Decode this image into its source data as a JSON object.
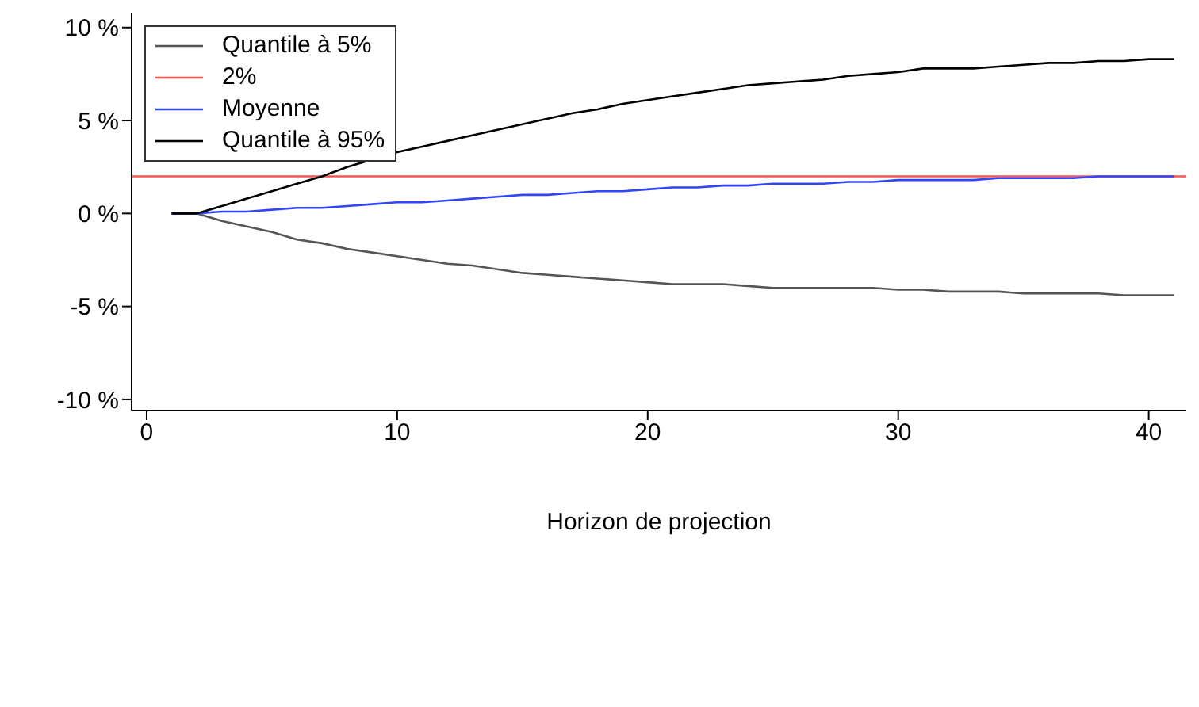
{
  "chart_data": {
    "type": "line",
    "xlabel": "Horizon de projection",
    "xlim": [
      -0.6,
      41.5
    ],
    "xticks": [
      0,
      10,
      20,
      30,
      40
    ],
    "ylim": [
      -10.6,
      10.8
    ],
    "yticks": [
      {
        "value": -10,
        "label": "-10 %"
      },
      {
        "value": -5,
        "label": "-5 %"
      },
      {
        "value": 0,
        "label": "0 %"
      },
      {
        "value": 5,
        "label": "5 %"
      },
      {
        "value": 10,
        "label": "10 %"
      }
    ],
    "x": [
      1,
      2,
      3,
      4,
      5,
      6,
      7,
      8,
      9,
      10,
      11,
      12,
      13,
      14,
      15,
      16,
      17,
      18,
      19,
      20,
      21,
      22,
      23,
      24,
      25,
      26,
      27,
      28,
      29,
      30,
      31,
      32,
      33,
      34,
      35,
      36,
      37,
      38,
      39,
      40,
      41
    ],
    "series": [
      {
        "name": "Quantile à 5%",
        "color": "#555555",
        "values": [
          0,
          0,
          -0.4,
          -0.7,
          -1.0,
          -1.4,
          -1.6,
          -1.9,
          -2.1,
          -2.3,
          -2.5,
          -2.7,
          -2.8,
          -3.0,
          -3.2,
          -3.3,
          -3.4,
          -3.5,
          -3.6,
          -3.7,
          -3.8,
          -3.8,
          -3.8,
          -3.9,
          -4.0,
          -4.0,
          -4.0,
          -4.0,
          -4.0,
          -4.1,
          -4.1,
          -4.2,
          -4.2,
          -4.2,
          -4.3,
          -4.3,
          -4.3,
          -4.3,
          -4.4,
          -4.4,
          -4.4
        ]
      },
      {
        "name": "2%",
        "color": "#ff5555",
        "x": [
          -0.6,
          41.5
        ],
        "values": [
          2,
          2
        ]
      },
      {
        "name": "Moyenne",
        "color": "#3344ff",
        "values": [
          0,
          0,
          0.1,
          0.1,
          0.2,
          0.3,
          0.3,
          0.4,
          0.5,
          0.6,
          0.6,
          0.7,
          0.8,
          0.9,
          1.0,
          1.0,
          1.1,
          1.2,
          1.2,
          1.3,
          1.4,
          1.4,
          1.5,
          1.5,
          1.6,
          1.6,
          1.6,
          1.7,
          1.7,
          1.8,
          1.8,
          1.8,
          1.8,
          1.9,
          1.9,
          1.9,
          1.9,
          2.0,
          2.0,
          2.0,
          2.0
        ]
      },
      {
        "name": "Quantile à 95%",
        "color": "#000000",
        "values": [
          0,
          0,
          0.4,
          0.8,
          1.2,
          1.6,
          2.0,
          2.5,
          2.9,
          3.3,
          3.6,
          3.9,
          4.2,
          4.5,
          4.8,
          5.1,
          5.4,
          5.6,
          5.9,
          6.1,
          6.3,
          6.5,
          6.7,
          6.9,
          7.0,
          7.1,
          7.2,
          7.4,
          7.5,
          7.6,
          7.8,
          7.8,
          7.8,
          7.9,
          8.0,
          8.1,
          8.1,
          8.2,
          8.2,
          8.3,
          8.3
        ]
      }
    ],
    "legend": "top left",
    "marker": "none",
    "line_style": "solid",
    "grid": false
  }
}
